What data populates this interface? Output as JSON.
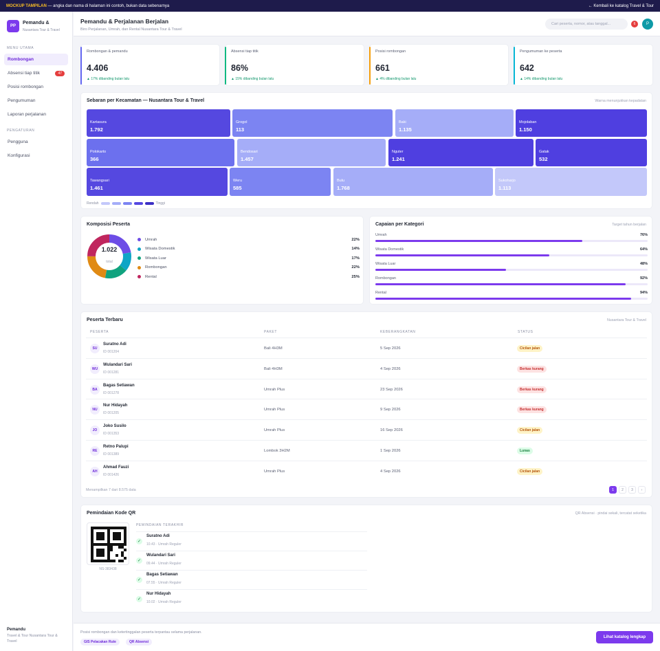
{
  "topbar": {
    "tag": "MOCKUP TAMPILAN",
    "note": "— angka dan nama di halaman ini contoh, bukan data sebenarnya",
    "back": "← Kembali ke katalog Travel & Tour"
  },
  "brand": {
    "initials": "PP",
    "name": "Pemandu &",
    "sub": "Nusantara Tour & Travel"
  },
  "nav": {
    "section1": "MENU UTAMA",
    "items1": [
      {
        "label": "Rombongan"
      },
      {
        "label": "Absensi tiap titik",
        "badge": "47"
      },
      {
        "label": "Posisi rombongan"
      },
      {
        "label": "Pengumuman"
      },
      {
        "label": "Laporan perjalanan"
      }
    ],
    "section2": "PENGATURAN",
    "items2": [
      {
        "label": "Pengguna"
      },
      {
        "label": "Konfigurasi"
      }
    ]
  },
  "sidebar_footer": {
    "name": "Pemandu",
    "sub": "Travel & Tour Nusantara Tour & Travel"
  },
  "header": {
    "title": "Pemandu & Perjalanan Berjalan",
    "subtitle": "Biro Perjalanan, Umrah, dan Rental Nusantara Tour & Travel",
    "search_placeholder": "Cari peserta, nomor, atau tanggal...",
    "notif_count": "6",
    "avatar": "P"
  },
  "kpis": [
    {
      "label": "Rombongan & pemandu",
      "value": "4.406",
      "change": "▲ 17% dibanding bulan lalu",
      "color": "#6366f1"
    },
    {
      "label": "Absensi tiap titik",
      "value": "86%",
      "change": "▲ 15% dibanding bulan lalu",
      "color": "#10b981"
    },
    {
      "label": "Posisi rombongan",
      "value": "661",
      "change": "▲ 4% dibanding bulan lalu",
      "color": "#f59e0b"
    },
    {
      "label": "Pengumuman ke peserta",
      "value": "642",
      "change": "▲ 14% dibanding bulan lalu",
      "color": "#06b6d4"
    }
  ],
  "treemap": {
    "title": "Sebaran per Kecamatan — Nusantara Tour & Travel",
    "note": "Warna menunjukkan kepadatan",
    "cells": [
      {
        "name": "Kartasura",
        "value": "1.792",
        "color": "#5548e0"
      },
      {
        "name": "Grogol",
        "value": "113",
        "color": "#7c84f2"
      },
      {
        "name": "Baki",
        "value": "1.135",
        "color": "#a5adf8"
      },
      {
        "name": "Mojolaban",
        "value": "1.150",
        "color": "#4f3fe0"
      },
      {
        "name": "Polokarto",
        "value": "366",
        "color": "#6c70ee"
      },
      {
        "name": "Bendosari",
        "value": "1.457",
        "color": "#a5adf8"
      },
      {
        "name": "Nguter",
        "value": "1.241",
        "color": "#4f3fe0"
      },
      {
        "name": "Gatak",
        "value": "532",
        "color": "#4f3fe0"
      },
      {
        "name": "Tawangsari",
        "value": "1.461",
        "color": "#5548e0"
      },
      {
        "name": "Weru",
        "value": "585",
        "color": "#7c84f2"
      },
      {
        "name": "Bulu",
        "value": "1.768",
        "color": "#a5adf8"
      },
      {
        "name": "Sukoharjo",
        "value": "1.113",
        "color": "#c3c8fa"
      }
    ],
    "legend_low": "Rendah",
    "legend_high": "Tinggi",
    "legend_colors": [
      "#c3c8fa",
      "#a5adf8",
      "#7c84f2",
      "#5548e0",
      "#3b2fc4"
    ]
  },
  "composition": {
    "title": "Komposisi Peserta",
    "total": "1.022",
    "total_label": "total",
    "items": [
      {
        "label": "Umrah",
        "pct": "22%",
        "value": 22,
        "color": "#6d4de6"
      },
      {
        "label": "Wisata Domestik",
        "pct": "14%",
        "value": 14,
        "color": "#0ea5c6"
      },
      {
        "label": "Wisata Luar",
        "pct": "17%",
        "value": 17,
        "color": "#10a37f"
      },
      {
        "label": "Rombongan",
        "pct": "22%",
        "value": 22,
        "color": "#e08a14"
      },
      {
        "label": "Rental",
        "pct": "25%",
        "value": 25,
        "color": "#c0265e"
      }
    ]
  },
  "achievement": {
    "title": "Capaian per Kategori",
    "note": "Target tahun berjalan",
    "items": [
      {
        "label": "Umrah",
        "pct": "76%",
        "value": 76
      },
      {
        "label": "Wisata Domestik",
        "pct": "64%",
        "value": 64
      },
      {
        "label": "Wisata Luar",
        "pct": "48%",
        "value": 48
      },
      {
        "label": "Rombongan",
        "pct": "92%",
        "value": 92
      },
      {
        "label": "Rental",
        "pct": "94%",
        "value": 94
      }
    ]
  },
  "participants": {
    "title": "Peserta Terbaru",
    "note": "Nusantara Tour & Travel",
    "headers": [
      "PESERTA",
      "PAKET",
      "KEBERANGKATAN",
      "STATUS"
    ],
    "rows": [
      {
        "initials": "SU",
        "name": "Suratno Adi",
        "id": "ID 001204",
        "package": "Bali 4H3M",
        "date": "5 Sep 2026",
        "status": "Cicilan jalan",
        "kind": "warn"
      },
      {
        "initials": "WU",
        "name": "Wulandari Sari",
        "id": "ID 001281",
        "package": "Bali 4H3M",
        "date": "4 Sep 2026",
        "status": "Berkas kurang",
        "kind": "bad"
      },
      {
        "initials": "BA",
        "name": "Bagas Setiawan",
        "id": "ID 001278",
        "package": "Umrah Plus",
        "date": "23 Sep 2026",
        "status": "Berkas kurang",
        "kind": "bad"
      },
      {
        "initials": "NU",
        "name": "Nur Hidayah",
        "id": "ID 001205",
        "package": "Umrah Plus",
        "date": "9 Sep 2026",
        "status": "Berkas kurang",
        "kind": "bad"
      },
      {
        "initials": "JO",
        "name": "Joko Susilo",
        "id": "ID 001353",
        "package": "Umrah Plus",
        "date": "16 Sep 2026",
        "status": "Cicilan jalan",
        "kind": "warn"
      },
      {
        "initials": "RE",
        "name": "Retno Palupi",
        "id": "ID 001389",
        "package": "Lombok 3H2M",
        "date": "1 Sep 2026",
        "status": "Lunas",
        "kind": "ok"
      },
      {
        "initials": "AH",
        "name": "Ahmad Fauzi",
        "id": "ID 001426",
        "package": "Umrah Plus",
        "date": "4 Sep 2026",
        "status": "Cicilan jalan",
        "kind": "warn"
      }
    ],
    "summary": "Menampilkan 7 dari 8.575 data",
    "pages": [
      "1",
      "2",
      "3",
      "›"
    ]
  },
  "qr": {
    "title": "Pemindaian Kode QR",
    "note": "QR Absensi · pindai sekali, tercatat seketika",
    "code_id": "NS-383438",
    "recent_title": "PEMINDAIAN TERAKHIR",
    "scans": [
      {
        "name": "Suratno Adi",
        "meta": "10.43 · Umrah Reguler"
      },
      {
        "name": "Wulandari Sari",
        "meta": "09.44 · Umrah Reguler"
      },
      {
        "name": "Bagas Setiawan",
        "meta": "07.55 · Umrah Reguler"
      },
      {
        "name": "Nur Hidayah",
        "meta": "10.02 · Umrah Reguler"
      }
    ]
  },
  "footer": {
    "text": "Posisi rombongan dan ketertinggalan peserta terpantau selama perjalanan.",
    "chips": [
      "GIS Pelacakan Rute",
      "QR Absensi"
    ],
    "cta": "Lihat katalog lengkap"
  }
}
